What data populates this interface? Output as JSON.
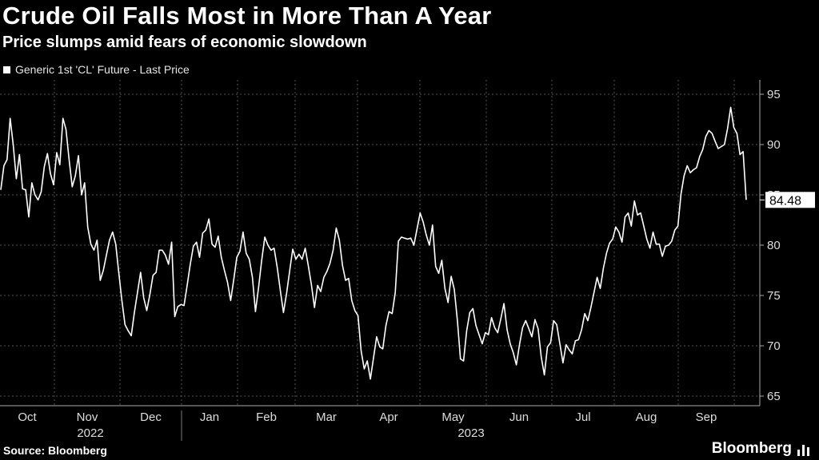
{
  "chart_data": {
    "type": "line",
    "title": "Crude Oil Falls Most in More Than A Year",
    "subtitle": "Price slumps amid fears of economic slowdown",
    "legend": [
      "Generic 1st 'CL' Future - Last Price"
    ],
    "series": [
      {
        "name": "Generic 1st 'CL' Future - Last Price",
        "color": "#ffffff",
        "values": [
          85.5,
          87.9,
          88.5,
          92.6,
          90.0,
          86.6,
          89.0,
          85.6,
          85.5,
          82.8,
          86.2,
          85.0,
          84.5,
          85.3,
          87.8,
          89.1,
          87.1,
          86.0,
          89.2,
          88.0,
          92.6,
          91.5,
          88.5,
          85.8,
          86.9,
          88.9,
          85.0,
          86.2,
          81.8,
          80.1,
          79.5,
          80.5,
          76.5,
          77.5,
          79.0,
          80.5,
          81.3,
          80.1,
          77.2,
          74.5,
          72.1,
          71.5,
          71.0,
          73.3,
          75.3,
          77.3,
          74.8,
          73.5,
          75.1,
          77.0,
          77.3,
          79.5,
          79.5,
          79.0,
          78.1,
          80.3,
          72.9,
          73.9,
          74.1,
          74.0,
          76.0,
          78.1,
          79.9,
          80.3,
          78.8,
          81.2,
          81.5,
          82.6,
          80.1,
          79.8,
          80.9,
          78.8,
          77.5,
          76.3,
          74.5,
          76.6,
          78.8,
          79.4,
          81.3,
          79.2,
          78.6,
          76.8,
          73.4,
          75.8,
          78.5,
          80.8,
          80.0,
          79.5,
          79.7,
          77.8,
          75.5,
          73.3,
          75.2,
          77.4,
          79.6,
          78.6,
          79.1,
          78.6,
          79.7,
          78.0,
          76.1,
          73.8,
          76.0,
          75.4,
          76.8,
          77.4,
          78.2,
          79.5,
          81.7,
          80.5,
          78.0,
          76.5,
          76.7,
          74.5,
          73.5,
          73.0,
          69.5,
          67.7,
          68.5,
          66.7,
          68.8,
          70.9,
          69.9,
          69.7,
          72.0,
          73.4,
          73.2,
          75.3,
          80.4,
          80.8,
          80.7,
          80.6,
          80.7,
          80.0,
          81.6,
          83.2,
          82.3,
          81.0,
          80.0,
          82.0,
          77.9,
          77.2,
          78.5,
          75.7,
          74.3,
          76.9,
          75.6,
          72.5,
          68.7,
          68.5,
          71.5,
          73.3,
          73.7,
          72.0,
          71.1,
          70.2,
          71.3,
          71.1,
          72.8,
          71.8,
          71.3,
          72.7,
          74.2,
          71.6,
          70.2,
          69.3,
          68.1,
          70.1,
          71.8,
          72.5,
          71.7,
          70.9,
          72.6,
          71.7,
          68.9,
          67.1,
          69.9,
          70.3,
          72.5,
          72.1,
          70.2,
          68.3,
          70.1,
          69.6,
          69.2,
          70.5,
          70.6,
          71.6,
          73.2,
          72.5,
          73.8,
          75.3,
          76.8,
          75.7,
          77.7,
          79.2,
          80.2,
          80.6,
          81.8,
          81.3,
          80.3,
          82.8,
          83.2,
          81.9,
          84.4,
          83.0,
          83.2,
          81.9,
          80.6,
          79.7,
          81.3,
          80.1,
          80.1,
          78.9,
          79.9,
          80.0,
          80.4,
          81.5,
          81.9,
          85.1,
          86.9,
          87.9,
          87.2,
          87.5,
          87.7,
          88.8,
          89.5,
          90.8,
          91.4,
          91.1,
          90.3,
          89.6,
          89.8,
          90.0,
          91.6,
          93.7,
          91.7,
          91.1,
          89.0,
          89.3,
          84.5
        ]
      }
    ],
    "last_value_label": "84.48",
    "y_axis": {
      "min": 65,
      "max": 95,
      "ticks": [
        65,
        70,
        75,
        80,
        85,
        90,
        95
      ],
      "position": "right",
      "grid": true
    },
    "x_axis": {
      "months": [
        "Oct",
        "Nov",
        "Dec",
        "Jan",
        "Feb",
        "Mar",
        "Apr",
        "May",
        "Jun",
        "Jul",
        "Aug",
        "Sep"
      ],
      "years": [
        "2022",
        "2023"
      ]
    }
  },
  "footer": {
    "source": "Source: Bloomberg",
    "brand": "Bloomberg"
  }
}
